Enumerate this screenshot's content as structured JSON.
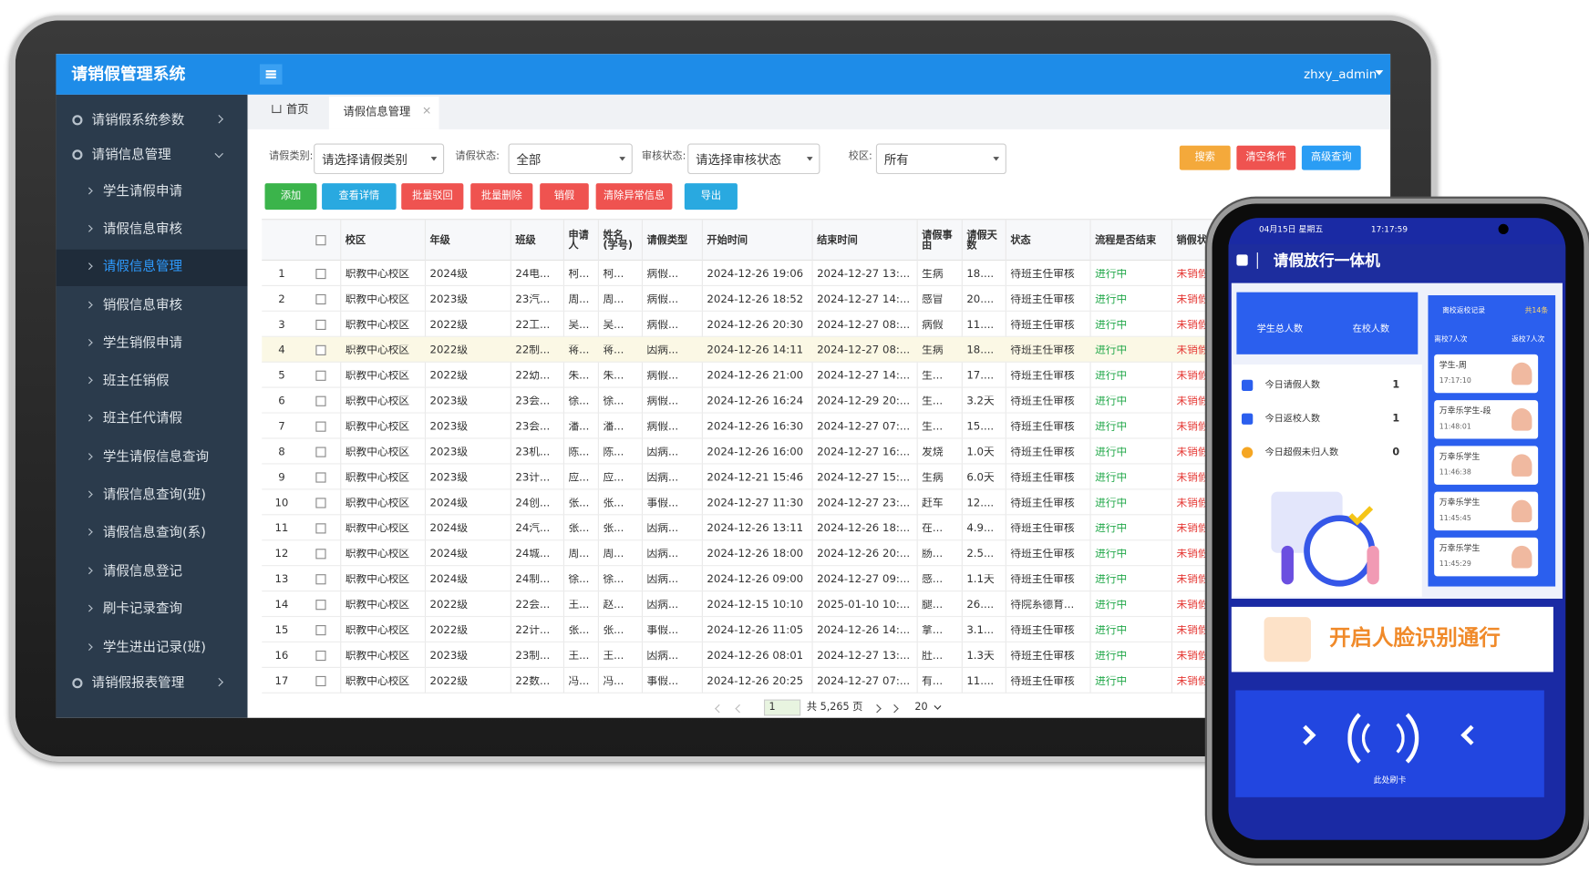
{
  "app": {
    "title": "请销假管理系统",
    "user": "zhxy_admin"
  },
  "sidebar": {
    "menu": [
      "请销假系统参数",
      "请销信息管理",
      "学生请假申请",
      "请假信息审核",
      "请假信息管理",
      "销假信息审核",
      "学生销假申请",
      "班主任销假",
      "班主任代请假",
      "学生请假信息查询",
      "请假信息查询(班)",
      "请假信息查询(系)",
      "请假信息登记",
      "刷卡记录查询",
      "学生进出记录(班)",
      "请销假报表管理"
    ]
  },
  "tabs": [
    "首页",
    "请假信息管理"
  ],
  "filters": [
    {
      "label": "请假类别:",
      "value": "请选择请假类别"
    },
    {
      "label": "请假状态:",
      "value": "全部"
    },
    {
      "label": "审核状态:",
      "value": "请选择审核状态"
    },
    {
      "label": "校区:",
      "value": "所有"
    }
  ],
  "search_buttons": [
    "搜索",
    "清空条件",
    "高级查询"
  ],
  "action_buttons": [
    "添加",
    "查看详情",
    "批量驳回",
    "批量删除",
    "销假",
    "清除异常信息",
    "导出"
  ],
  "table": {
    "headers": [
      "校区",
      "年级",
      "班级",
      "申请人",
      "姓名(学号)",
      "请假类型",
      "开始时间",
      "结束时间",
      "请假事由",
      "请假天数",
      "状态",
      "流程是否结束",
      "销假状"
    ],
    "rows": [
      [
        1,
        "职教中心校区",
        "2024级",
        "24电...",
        "柯...",
        "柯...",
        "病假...",
        "2024-12-26 19:06",
        "2024-12-27 13:...",
        "生病",
        "18....",
        "待班主任审核",
        "进行中",
        "未销假"
      ],
      [
        2,
        "职教中心校区",
        "2023级",
        "23汽...",
        "周...",
        "周...",
        "病假...",
        "2024-12-26 18:52",
        "2024-12-27 14:...",
        "感冒",
        "20....",
        "待班主任审核",
        "进行中",
        "未销假"
      ],
      [
        3,
        "职教中心校区",
        "2022级",
        "22工...",
        "吴...",
        "吴...",
        "病假...",
        "2024-12-26 20:30",
        "2024-12-27 08:...",
        "病假",
        "11....",
        "待班主任审核",
        "进行中",
        "未销假"
      ],
      [
        4,
        "职教中心校区",
        "2022级",
        "22制...",
        "蒋...",
        "蒋...",
        "因病...",
        "2024-12-26 14:11",
        "2024-12-27 08:...",
        "生病",
        "18....",
        "待班主任审核",
        "进行中",
        "未销假"
      ],
      [
        5,
        "职教中心校区",
        "2022级",
        "22幼...",
        "朱...",
        "朱...",
        "病假...",
        "2024-12-26 21:00",
        "2024-12-27 14:...",
        "生...",
        "17....",
        "待班主任审核",
        "进行中",
        "未销假"
      ],
      [
        6,
        "职教中心校区",
        "2023级",
        "23会...",
        "徐...",
        "徐...",
        "病假...",
        "2024-12-26 16:24",
        "2024-12-29 20:...",
        "生...",
        "3.2天",
        "待班主任审核",
        "进行中",
        "未销假"
      ],
      [
        7,
        "职教中心校区",
        "2023级",
        "23会...",
        "潘...",
        "潘...",
        "病假...",
        "2024-12-26 16:30",
        "2024-12-27 07:...",
        "生...",
        "15....",
        "待班主任审核",
        "进行中",
        "未销假"
      ],
      [
        8,
        "职教中心校区",
        "2023级",
        "23机...",
        "陈...",
        "陈...",
        "因病...",
        "2024-12-26 16:00",
        "2024-12-27 16:...",
        "发烧",
        "1.0天",
        "待班主任审核",
        "进行中",
        "未销假"
      ],
      [
        9,
        "职教中心校区",
        "2023级",
        "23计...",
        "应...",
        "应...",
        "因病...",
        "2024-12-21 15:46",
        "2024-12-27 15:...",
        "生病",
        "6.0天",
        "待班主任审核",
        "进行中",
        "未销假"
      ],
      [
        10,
        "职教中心校区",
        "2024级",
        "24创...",
        "张...",
        "张...",
        "事假...",
        "2024-12-27 11:30",
        "2024-12-27 23:...",
        "赶车",
        "12....",
        "待班主任审核",
        "进行中",
        "未销假"
      ],
      [
        11,
        "职教中心校区",
        "2024级",
        "24汽...",
        "张...",
        "张...",
        "因病...",
        "2024-12-26 13:11",
        "2024-12-26 18:...",
        "在...",
        "4.9...",
        "待班主任审核",
        "进行中",
        "未销假"
      ],
      [
        12,
        "职教中心校区",
        "2024级",
        "24城...",
        "周...",
        "周...",
        "因病...",
        "2024-12-26 18:00",
        "2024-12-26 20:...",
        "肠...",
        "2.5...",
        "待班主任审核",
        "进行中",
        "未销假"
      ],
      [
        13,
        "职教中心校区",
        "2024级",
        "24制...",
        "徐...",
        "徐...",
        "因病...",
        "2024-12-26 09:00",
        "2024-12-27 09:...",
        "感...",
        "1.1天",
        "待班主任审核",
        "进行中",
        "未销假"
      ],
      [
        14,
        "职教中心校区",
        "2022级",
        "22会...",
        "王...",
        "赵...",
        "因病...",
        "2024-12-15 10:10",
        "2025-01-10 10:...",
        "腿...",
        "26....",
        "待院系德育...",
        "进行中",
        "未销假"
      ],
      [
        15,
        "职教中心校区",
        "2022级",
        "22计...",
        "张...",
        "张...",
        "事假...",
        "2024-12-26 11:05",
        "2024-12-26 14:...",
        "拿...",
        "3.1...",
        "待班主任审核",
        "进行中",
        "未销假"
      ],
      [
        16,
        "职教中心校区",
        "2023级",
        "23制...",
        "王...",
        "王...",
        "因病...",
        "2024-12-26 08:01",
        "2024-12-27 13:...",
        "肚...",
        "1.3天",
        "待班主任审核",
        "进行中",
        "未销假"
      ],
      [
        17,
        "职教中心校区",
        "2022级",
        "22数...",
        "冯...",
        "冯...",
        "事假...",
        "2024-12-26 20:25",
        "2024-12-27 07:...",
        "有...",
        "11....",
        "待班主任审核",
        "进行中",
        "未销假"
      ]
    ]
  },
  "pagination": {
    "page": 1,
    "total": "共 5,265 页",
    "page_size": 20
  },
  "kiosk": {
    "date": "04月15日 星期五",
    "time": "17:17:59",
    "title": "请假放行一体机",
    "summary": [
      "学生总人数",
      "在校人数"
    ],
    "stats": [
      {
        "label": "今日请假人数",
        "value": 1
      },
      {
        "label": "今日返校人数",
        "value": 1
      },
      {
        "label": "今日超假未归人数",
        "value": 0
      }
    ],
    "records_title": "离校返校记录",
    "records_count": "共14条",
    "leave_count": "离校7人次",
    "return_count": "返校7人次",
    "records": [
      {
        "name": "学生-周",
        "time": "17:17:10"
      },
      {
        "name": "万幸乐学生-段",
        "time": "11:48:01"
      },
      {
        "name": "万幸乐学生",
        "time": "11:46:38"
      },
      {
        "name": "万幸乐学生",
        "time": "11:45:45"
      },
      {
        "name": "万幸乐学生",
        "time": "11:45:29"
      }
    ],
    "face_button": "开启人脸识别通行",
    "card_hint": "此处刷卡"
  }
}
